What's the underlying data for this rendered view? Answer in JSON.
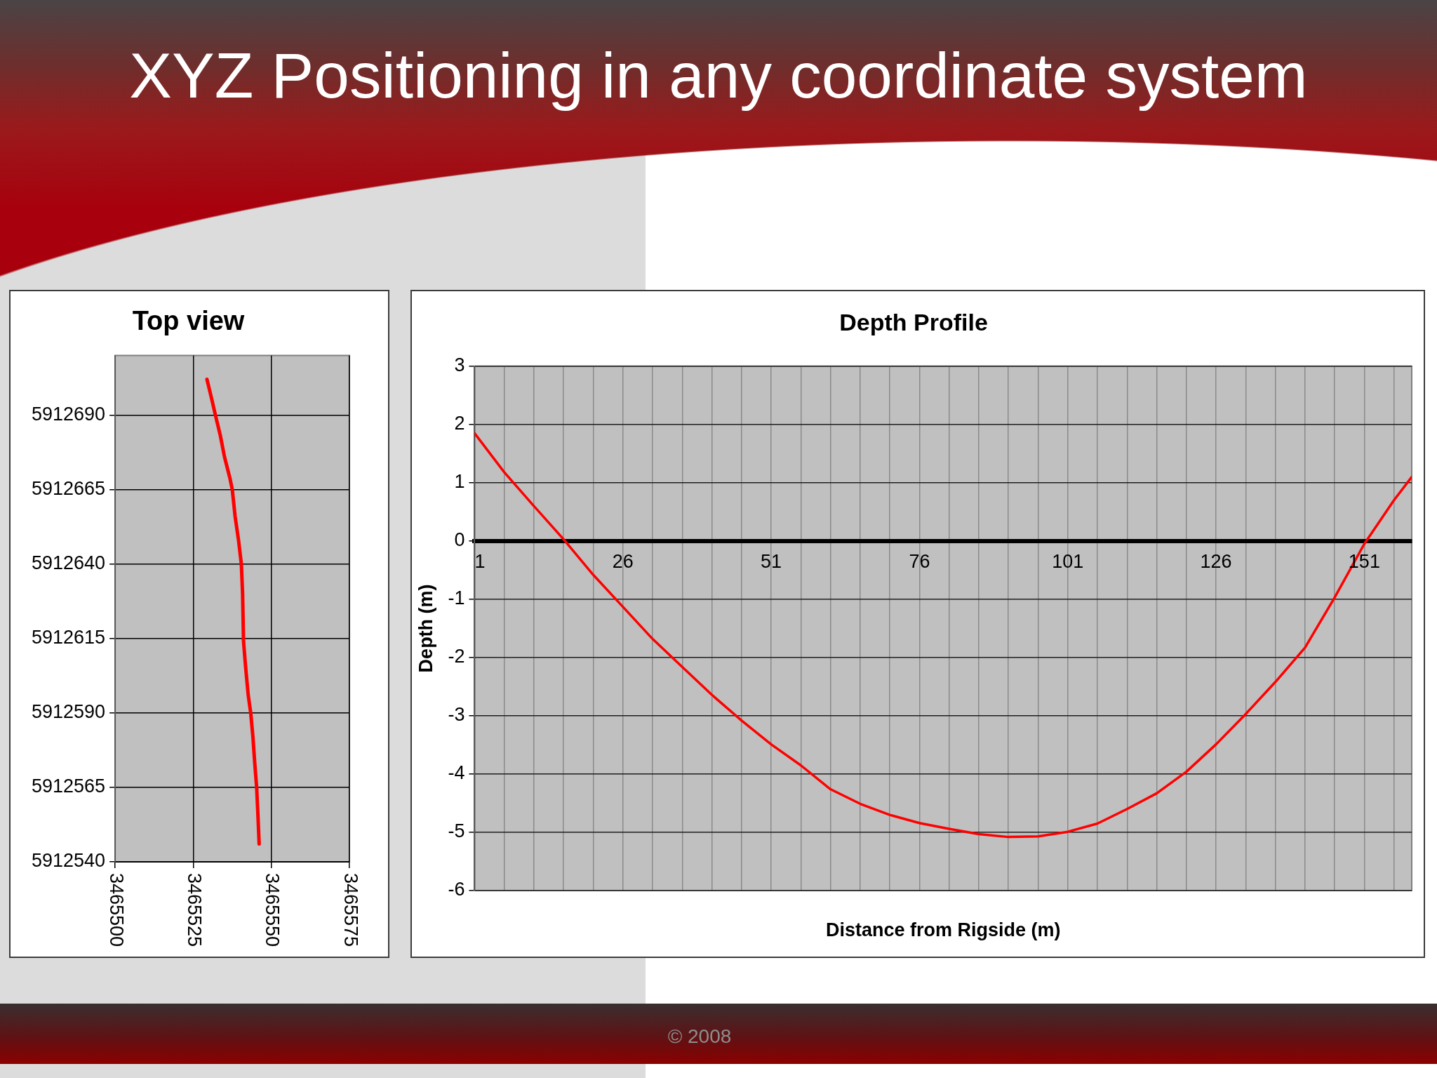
{
  "chart_data": [
    {
      "type": "line",
      "title": "Top view",
      "annotations": [
        "XYZ Positioning in any coordinate system",
        "© 2008"
      ],
      "x": [
        3465529.4,
        3465531.0,
        3465532.1,
        3465533.7,
        3465535.0,
        3465536.7,
        3465537.5,
        3465538.4,
        3465539.5,
        3465540.4,
        3465540.8,
        3465541.1,
        3465541.8,
        3465542.6,
        3465543.4,
        3465544.1,
        3465544.7,
        3465545.3,
        3465545.7,
        3465546.1
      ],
      "values": [
        5912702,
        5912695,
        5912690,
        5912683,
        5912676,
        5912669,
        5912665,
        5912656,
        5912648,
        5912640,
        5912630,
        5912614,
        5912605,
        5912596,
        5912590,
        5912582,
        5912573,
        5912565,
        5912556,
        5912546
      ],
      "color": "#ff0000",
      "xlim": [
        3465500,
        3465575
      ],
      "xticks": [
        3465500,
        3465525,
        3465550,
        3465575
      ],
      "ylim": [
        5912540,
        5912710
      ],
      "yticks": [
        5912540,
        5912565,
        5912590,
        5912615,
        5912640,
        5912665,
        5912690
      ],
      "grid": true
    },
    {
      "type": "line",
      "title": "Depth Profile",
      "xlabel": "Distance from Rigside (m)",
      "ylabel": "Depth (m)",
      "x": [
        1,
        6,
        11,
        16,
        21,
        26,
        31,
        36,
        41,
        46,
        51,
        56,
        61,
        66,
        71,
        76,
        81,
        86,
        91,
        96,
        101,
        106,
        111,
        116,
        121,
        126,
        131,
        136,
        141,
        146,
        151,
        156,
        159
      ],
      "values": [
        1.85,
        1.18,
        0.6,
        0.03,
        -0.58,
        -1.13,
        -1.68,
        -2.16,
        -2.64,
        -3.08,
        -3.49,
        -3.85,
        -4.26,
        -4.51,
        -4.7,
        -4.84,
        -4.94,
        -5.03,
        -5.08,
        -5.07,
        -4.99,
        -4.85,
        -4.6,
        -4.33,
        -3.96,
        -3.49,
        -2.97,
        -2.42,
        -1.83,
        -0.97,
        -0.05,
        0.7,
        1.1
      ],
      "color": "#ff0000",
      "xlim": [
        1,
        159
      ],
      "xticks": [
        1,
        {
          "value": 6,
          "label": null
        },
        {
          "value": 11,
          "label": null
        },
        {
          "value": 16,
          "label": null
        },
        {
          "value": 21,
          "label": null
        },
        26,
        {
          "value": 31,
          "label": null
        },
        {
          "value": 36,
          "label": null
        },
        {
          "value": 41,
          "label": null
        },
        {
          "value": 46,
          "label": null
        },
        51,
        {
          "value": 56,
          "label": null
        },
        {
          "value": 61,
          "label": null
        },
        {
          "value": 66,
          "label": null
        },
        {
          "value": 71,
          "label": null
        },
        76,
        {
          "value": 81,
          "label": null
        },
        {
          "value": 86,
          "label": null
        },
        {
          "value": 91,
          "label": null
        },
        {
          "value": 96,
          "label": null
        },
        101,
        {
          "value": 106,
          "label": null
        },
        {
          "value": 111,
          "label": null
        },
        {
          "value": 116,
          "label": null
        },
        {
          "value": 121,
          "label": null
        },
        126,
        {
          "value": 131,
          "label": null
        },
        {
          "value": 136,
          "label": null
        },
        {
          "value": 141,
          "label": null
        },
        {
          "value": 146,
          "label": null
        },
        151,
        {
          "value": 156,
          "label": null
        }
      ],
      "ylim": [
        -6,
        3
      ],
      "yticks": [
        -6,
        -5,
        -4,
        -3,
        -2,
        -1,
        0,
        1,
        2,
        3
      ],
      "grid": true
    }
  ]
}
